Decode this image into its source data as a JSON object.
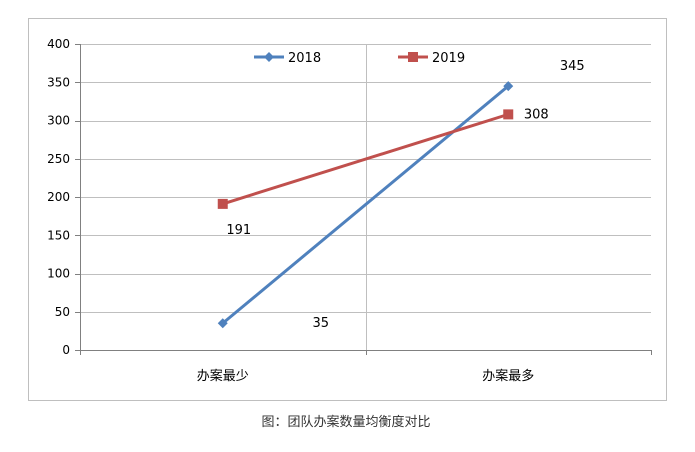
{
  "chart_data": {
    "type": "line",
    "categories": [
      "办案最少",
      "办案最多"
    ],
    "series": [
      {
        "name": "2018",
        "values": [
          35,
          345
        ],
        "color": "#4f81bd",
        "marker": "diamond",
        "labels": [
          "35",
          "345"
        ]
      },
      {
        "name": "2019",
        "values": [
          191,
          308
        ],
        "color": "#c0504d",
        "marker": "square",
        "labels": [
          "191",
          "308"
        ]
      }
    ],
    "ylim": [
      0,
      400
    ],
    "yticks": [
      0,
      50,
      100,
      150,
      200,
      250,
      300,
      350,
      400
    ],
    "grid": true,
    "legend": "top",
    "caption": "图：团队办案数量均衡度对比"
  }
}
